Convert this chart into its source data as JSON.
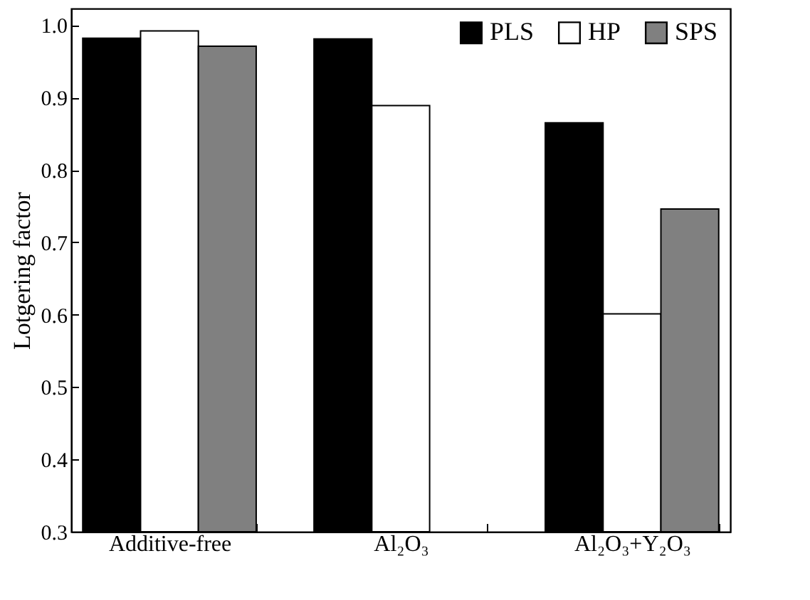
{
  "chart_data": {
    "type": "bar",
    "ylabel": "Lotgering factor",
    "categories": [
      "Additive-free",
      "Al₂O₃",
      "Al₂O₃+Y₂O₃"
    ],
    "series": [
      {
        "name": "PLS",
        "color": "#000000",
        "values": [
          0.982,
          0.981,
          0.865
        ]
      },
      {
        "name": "HP",
        "color": "#ffffff",
        "values": [
          0.992,
          0.889,
          0.601
        ]
      },
      {
        "name": "SPS",
        "color": "#808080",
        "values": [
          0.971,
          null,
          0.746
        ]
      }
    ],
    "ylim": [
      0.3,
      1.023
    ],
    "yticks": [
      0.3,
      0.4,
      0.5,
      0.6,
      0.7,
      0.8,
      0.9,
      {
        "value": 1,
        "label": "1.0"
      }
    ],
    "legend": "top right",
    "grid": false
  }
}
